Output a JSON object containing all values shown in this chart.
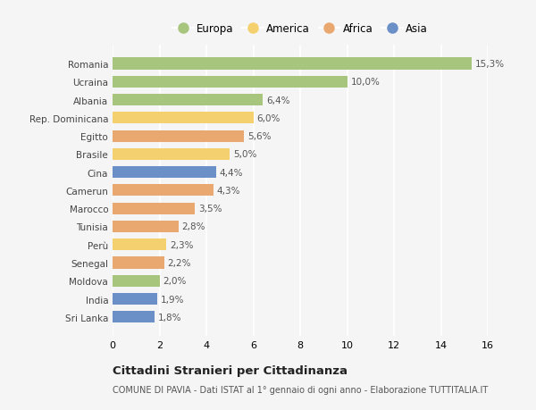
{
  "countries": [
    "Romania",
    "Ucraina",
    "Albania",
    "Rep. Dominicana",
    "Egitto",
    "Brasile",
    "Cina",
    "Camerun",
    "Marocco",
    "Tunisia",
    "Perù",
    "Senegal",
    "Moldova",
    "India",
    "Sri Lanka"
  ],
  "values": [
    15.3,
    10.0,
    6.4,
    6.0,
    5.6,
    5.0,
    4.4,
    4.3,
    3.5,
    2.8,
    2.3,
    2.2,
    2.0,
    1.9,
    1.8
  ],
  "labels": [
    "15,3%",
    "10,0%",
    "6,4%",
    "6,0%",
    "5,6%",
    "5,0%",
    "4,4%",
    "4,3%",
    "3,5%",
    "2,8%",
    "2,3%",
    "2,2%",
    "2,0%",
    "1,9%",
    "1,8%"
  ],
  "continents": [
    "Europa",
    "Europa",
    "Europa",
    "America",
    "Africa",
    "America",
    "Asia",
    "Africa",
    "Africa",
    "Africa",
    "America",
    "Africa",
    "Europa",
    "Asia",
    "Asia"
  ],
  "colors": {
    "Europa": "#a8c57e",
    "America": "#f5d06e",
    "Africa": "#e8a870",
    "Asia": "#6b8fc7"
  },
  "legend_order": [
    "Europa",
    "America",
    "Africa",
    "Asia"
  ],
  "title": "Cittadini Stranieri per Cittadinanza",
  "subtitle": "COMUNE DI PAVIA - Dati ISTAT al 1° gennaio di ogni anno - Elaborazione TUTTITALIA.IT",
  "xlim": [
    0,
    16
  ],
  "xticks": [
    0,
    2,
    4,
    6,
    8,
    10,
    12,
    14,
    16
  ],
  "bg_color": "#f5f5f5",
  "grid_color": "#ffffff",
  "bar_height": 0.65
}
